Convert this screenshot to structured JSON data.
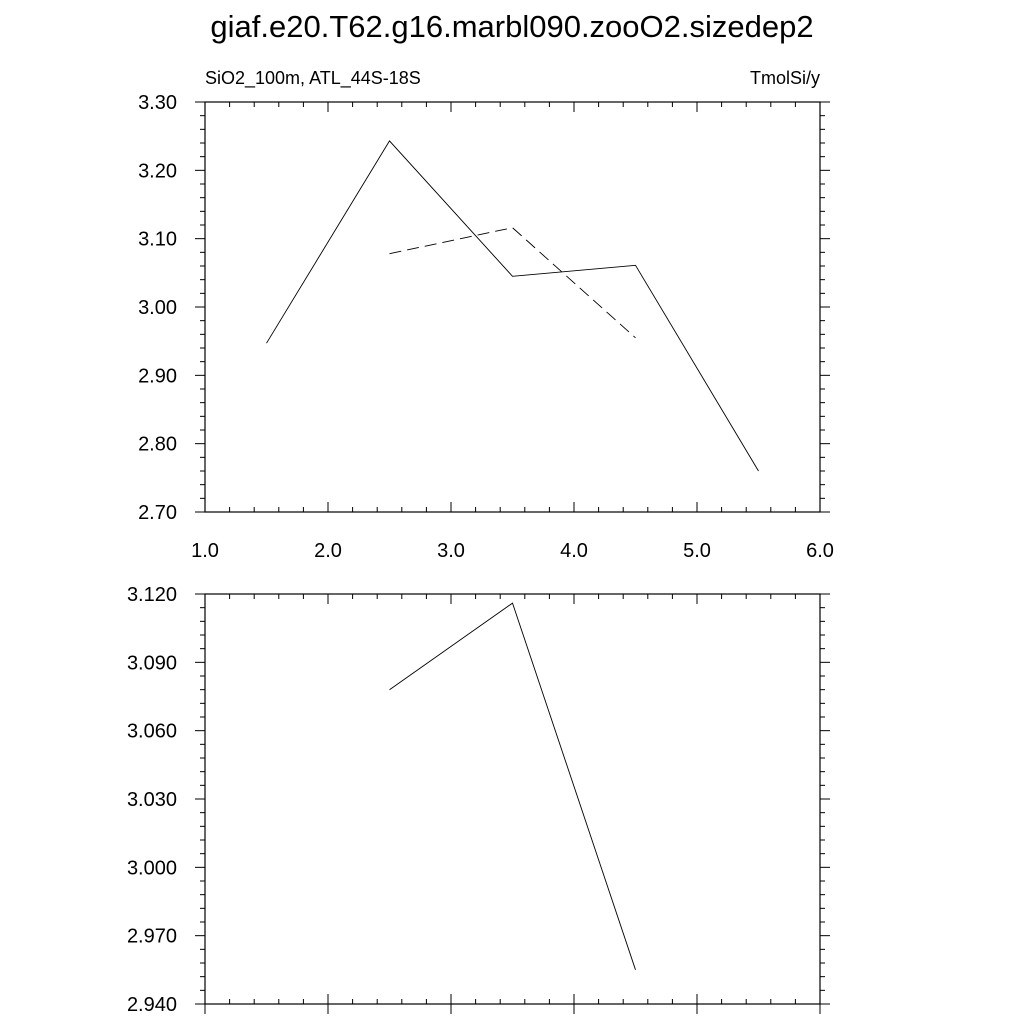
{
  "title": "giaf.e20.T62.g16.marbl090.zooO2.sizedep2",
  "chart_data": [
    {
      "type": "line",
      "left_label": "SiO2_100m, ATL_44S-18S",
      "right_label": "TmolSi/y",
      "xlim": [
        1.0,
        6.0
      ],
      "ylim": [
        2.7,
        3.3
      ],
      "x_ticks": [
        "1.0",
        "2.0",
        "3.0",
        "4.0",
        "5.0",
        "6.0"
      ],
      "y_ticks": [
        "2.70",
        "2.80",
        "2.90",
        "3.00",
        "3.10",
        "3.20",
        "3.30"
      ],
      "grid": false,
      "series": [
        {
          "style": "solid",
          "x": [
            1.5,
            2.5,
            3.5,
            4.5,
            5.5
          ],
          "y": [
            2.947,
            3.243,
            3.045,
            3.061,
            2.76
          ]
        },
        {
          "style": "dashed",
          "x": [
            2.5,
            3.5,
            4.5
          ],
          "y": [
            3.078,
            3.116,
            2.955
          ]
        }
      ]
    },
    {
      "type": "line",
      "xlim": [
        1.0,
        6.0
      ],
      "ylim": [
        2.94,
        3.12
      ],
      "y_ticks": [
        "2.940",
        "2.970",
        "3.000",
        "3.030",
        "3.060",
        "3.090",
        "3.120"
      ],
      "grid": false,
      "series": [
        {
          "style": "solid",
          "x": [
            2.5,
            3.5,
            4.5
          ],
          "y": [
            3.078,
            3.116,
            2.955
          ]
        }
      ]
    }
  ]
}
